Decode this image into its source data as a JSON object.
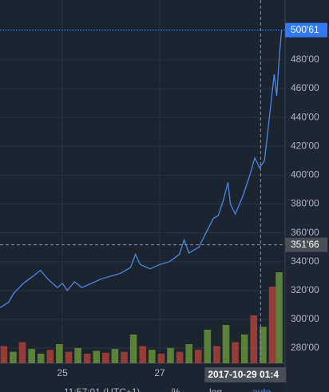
{
  "chart_data": {
    "type": "line",
    "x": [
      23.72,
      23.9,
      24.0,
      24.2,
      24.4,
      24.55,
      24.7,
      24.9,
      25.0,
      25.1,
      25.25,
      25.4,
      25.6,
      25.8,
      26.0,
      26.2,
      26.4,
      26.5,
      26.6,
      26.8,
      27.0,
      27.2,
      27.4,
      27.5,
      27.6,
      27.8,
      27.95,
      28.1,
      28.2,
      28.3,
      28.4,
      28.45,
      28.55,
      28.7,
      28.85,
      28.95,
      29.05,
      29.15,
      29.25,
      29.35,
      29.4,
      29.45,
      29.5
    ],
    "series": [
      {
        "color": "#4a86e8",
        "values": [
          308,
          312,
          318,
          325,
          330,
          334,
          328,
          322,
          325,
          320,
          326,
          322,
          325,
          328,
          330,
          332,
          336,
          345,
          338,
          335,
          338,
          340,
          345,
          355,
          346,
          350,
          360,
          370,
          372,
          382,
          395,
          380,
          373,
          385,
          400,
          412,
          405,
          410,
          440,
          470,
          455,
          480,
          500.61
        ]
      }
    ],
    "volume": {
      "axis": "y2",
      "x": [
        23.8,
        23.99,
        24.18,
        24.37,
        24.56,
        24.75,
        24.94,
        25.13,
        25.32,
        25.51,
        25.7,
        25.89,
        26.08,
        26.27,
        26.46,
        26.65,
        26.84,
        27.03,
        27.22,
        27.41,
        27.6,
        27.79,
        27.98,
        28.17,
        28.36,
        28.55,
        28.74,
        28.93,
        29.12,
        29.31,
        29.45
      ],
      "values": [
        18,
        12,
        22,
        15,
        10,
        14,
        20,
        12,
        16,
        10,
        13,
        11,
        15,
        12,
        30,
        18,
        14,
        10,
        16,
        12,
        20,
        14,
        35,
        18,
        40,
        22,
        30,
        50,
        38,
        80,
        95
      ],
      "colors": [
        "#b5423a",
        "#6a9a3a",
        "#b5423a",
        "#6a9a3a",
        "#6a9a3a",
        "#b5423a",
        "#6a9a3a",
        "#b5423a",
        "#6a9a3a",
        "#b5423a",
        "#6a9a3a",
        "#b5423a",
        "#6a9a3a",
        "#b5423a",
        "#6a9a3a",
        "#b5423a",
        "#6a9a3a",
        "#b5423a",
        "#6a9a3a",
        "#b5423a",
        "#6a9a3a",
        "#b5423a",
        "#6a9a3a",
        "#b5423a",
        "#6a9a3a",
        "#b5423a",
        "#6a9a3a",
        "#b5423a",
        "#6a9a3a",
        "#b5423a",
        "#6a9a3a"
      ]
    },
    "xlim": [
      23.72,
      29.54
    ],
    "xticks": [
      25,
      27
    ],
    "ylim": [
      269.5,
      521.5
    ],
    "yticks": [
      {
        "value": 280,
        "label": "280'00"
      },
      {
        "value": 300,
        "label": "300'00"
      },
      {
        "value": 320,
        "label": "320'00"
      },
      {
        "value": 340,
        "label": "340'00"
      },
      {
        "value": 360,
        "label": "360'00"
      },
      {
        "value": 380,
        "label": "380'00"
      },
      {
        "value": 400,
        "label": "400'00"
      },
      {
        "value": 420,
        "label": "420'00"
      },
      {
        "value": 440,
        "label": "440'00"
      },
      {
        "value": 460,
        "label": "460'00"
      },
      {
        "value": 480,
        "label": "480'00"
      }
    ],
    "y2lim": [
      0,
      100
    ],
    "grid": true,
    "last_price": {
      "value": 500.61,
      "label": "500'61"
    },
    "crosshair": {
      "x": 29.07,
      "time": "2017-10-29 01:4",
      "price": {
        "value": 351.66,
        "label": "351'66"
      }
    },
    "toolbar": [
      "11:57:01 (UTC+1)",
      "%",
      "log",
      "auto"
    ]
  }
}
